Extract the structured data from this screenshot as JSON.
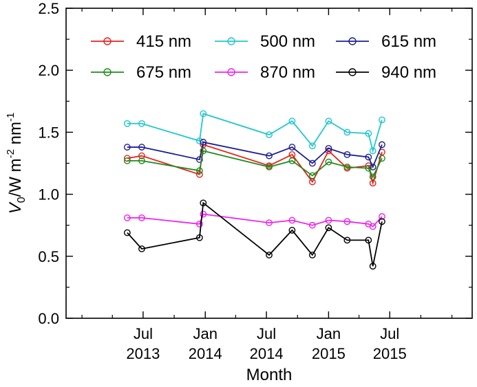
{
  "chart_data": {
    "type": "line",
    "xlabel": "Month",
    "ylabel": {
      "main": "V",
      "sub": "0",
      "unit": "/W m",
      "exp1": "-2",
      "mid": " nm",
      "exp2": "-1"
    },
    "xlim": [
      "2012-11-15",
      "2016-03-01"
    ],
    "ylim": [
      0.0,
      2.5
    ],
    "y_ticks": [
      0.0,
      0.5,
      1.0,
      1.5,
      2.0,
      2.5
    ],
    "y_tick_labels": [
      "0.0",
      "0.5",
      "1.0",
      "1.5",
      "2.0",
      "2.5"
    ],
    "x_ticks": [
      {
        "date": "2013-07-01",
        "label1": "Jul",
        "label2": "2013"
      },
      {
        "date": "2014-01-01",
        "label1": "Jan",
        "label2": "2014"
      },
      {
        "date": "2014-07-01",
        "label1": "Jul",
        "label2": "2014"
      },
      {
        "date": "2015-01-01",
        "label1": "Jan",
        "label2": "2015"
      },
      {
        "date": "2015-07-01",
        "label1": "Jul",
        "label2": "2015"
      }
    ],
    "x_minor_ticks": [
      "2013-01-01",
      "2013-04-01",
      "2013-10-01",
      "2014-04-01",
      "2014-10-01",
      "2015-04-01",
      "2015-10-01",
      "2016-01-01"
    ],
    "legend_position": "top",
    "x": [
      "2013-05-15",
      "2013-06-27",
      "2013-12-15",
      "2013-12-26",
      "2014-07-09",
      "2014-09-15",
      "2014-11-14",
      "2015-01-01",
      "2015-02-25",
      "2015-04-29",
      "2015-05-12",
      "2015-06-08"
    ],
    "series": [
      {
        "name": "415 nm",
        "color": "#e8211b",
        "values": [
          1.29,
          1.31,
          1.16,
          1.4,
          1.23,
          1.32,
          1.1,
          1.35,
          1.21,
          1.23,
          1.09,
          1.34
        ]
      },
      {
        "name": "500 nm",
        "color": "#1fc7cc",
        "values": [
          1.57,
          1.57,
          1.43,
          1.65,
          1.48,
          1.59,
          1.39,
          1.59,
          1.5,
          1.49,
          1.35,
          1.6
        ]
      },
      {
        "name": "615 nm",
        "color": "#1b1e94",
        "values": [
          1.38,
          1.38,
          1.28,
          1.42,
          1.31,
          1.38,
          1.25,
          1.37,
          1.32,
          1.3,
          1.22,
          1.4
        ]
      },
      {
        "name": "675 nm",
        "color": "#1e8b1e",
        "values": [
          1.27,
          1.27,
          1.19,
          1.35,
          1.22,
          1.27,
          1.15,
          1.26,
          1.22,
          1.21,
          1.14,
          1.29
        ]
      },
      {
        "name": "870 nm",
        "color": "#ee22ee",
        "values": [
          0.81,
          0.81,
          0.76,
          0.84,
          0.77,
          0.79,
          0.75,
          0.79,
          0.78,
          0.76,
          0.74,
          0.82
        ]
      },
      {
        "name": "940 nm",
        "color": "#000000",
        "values": [
          0.69,
          0.56,
          0.65,
          0.93,
          0.51,
          0.71,
          0.51,
          0.73,
          0.63,
          0.63,
          0.42,
          0.78
        ]
      }
    ]
  }
}
